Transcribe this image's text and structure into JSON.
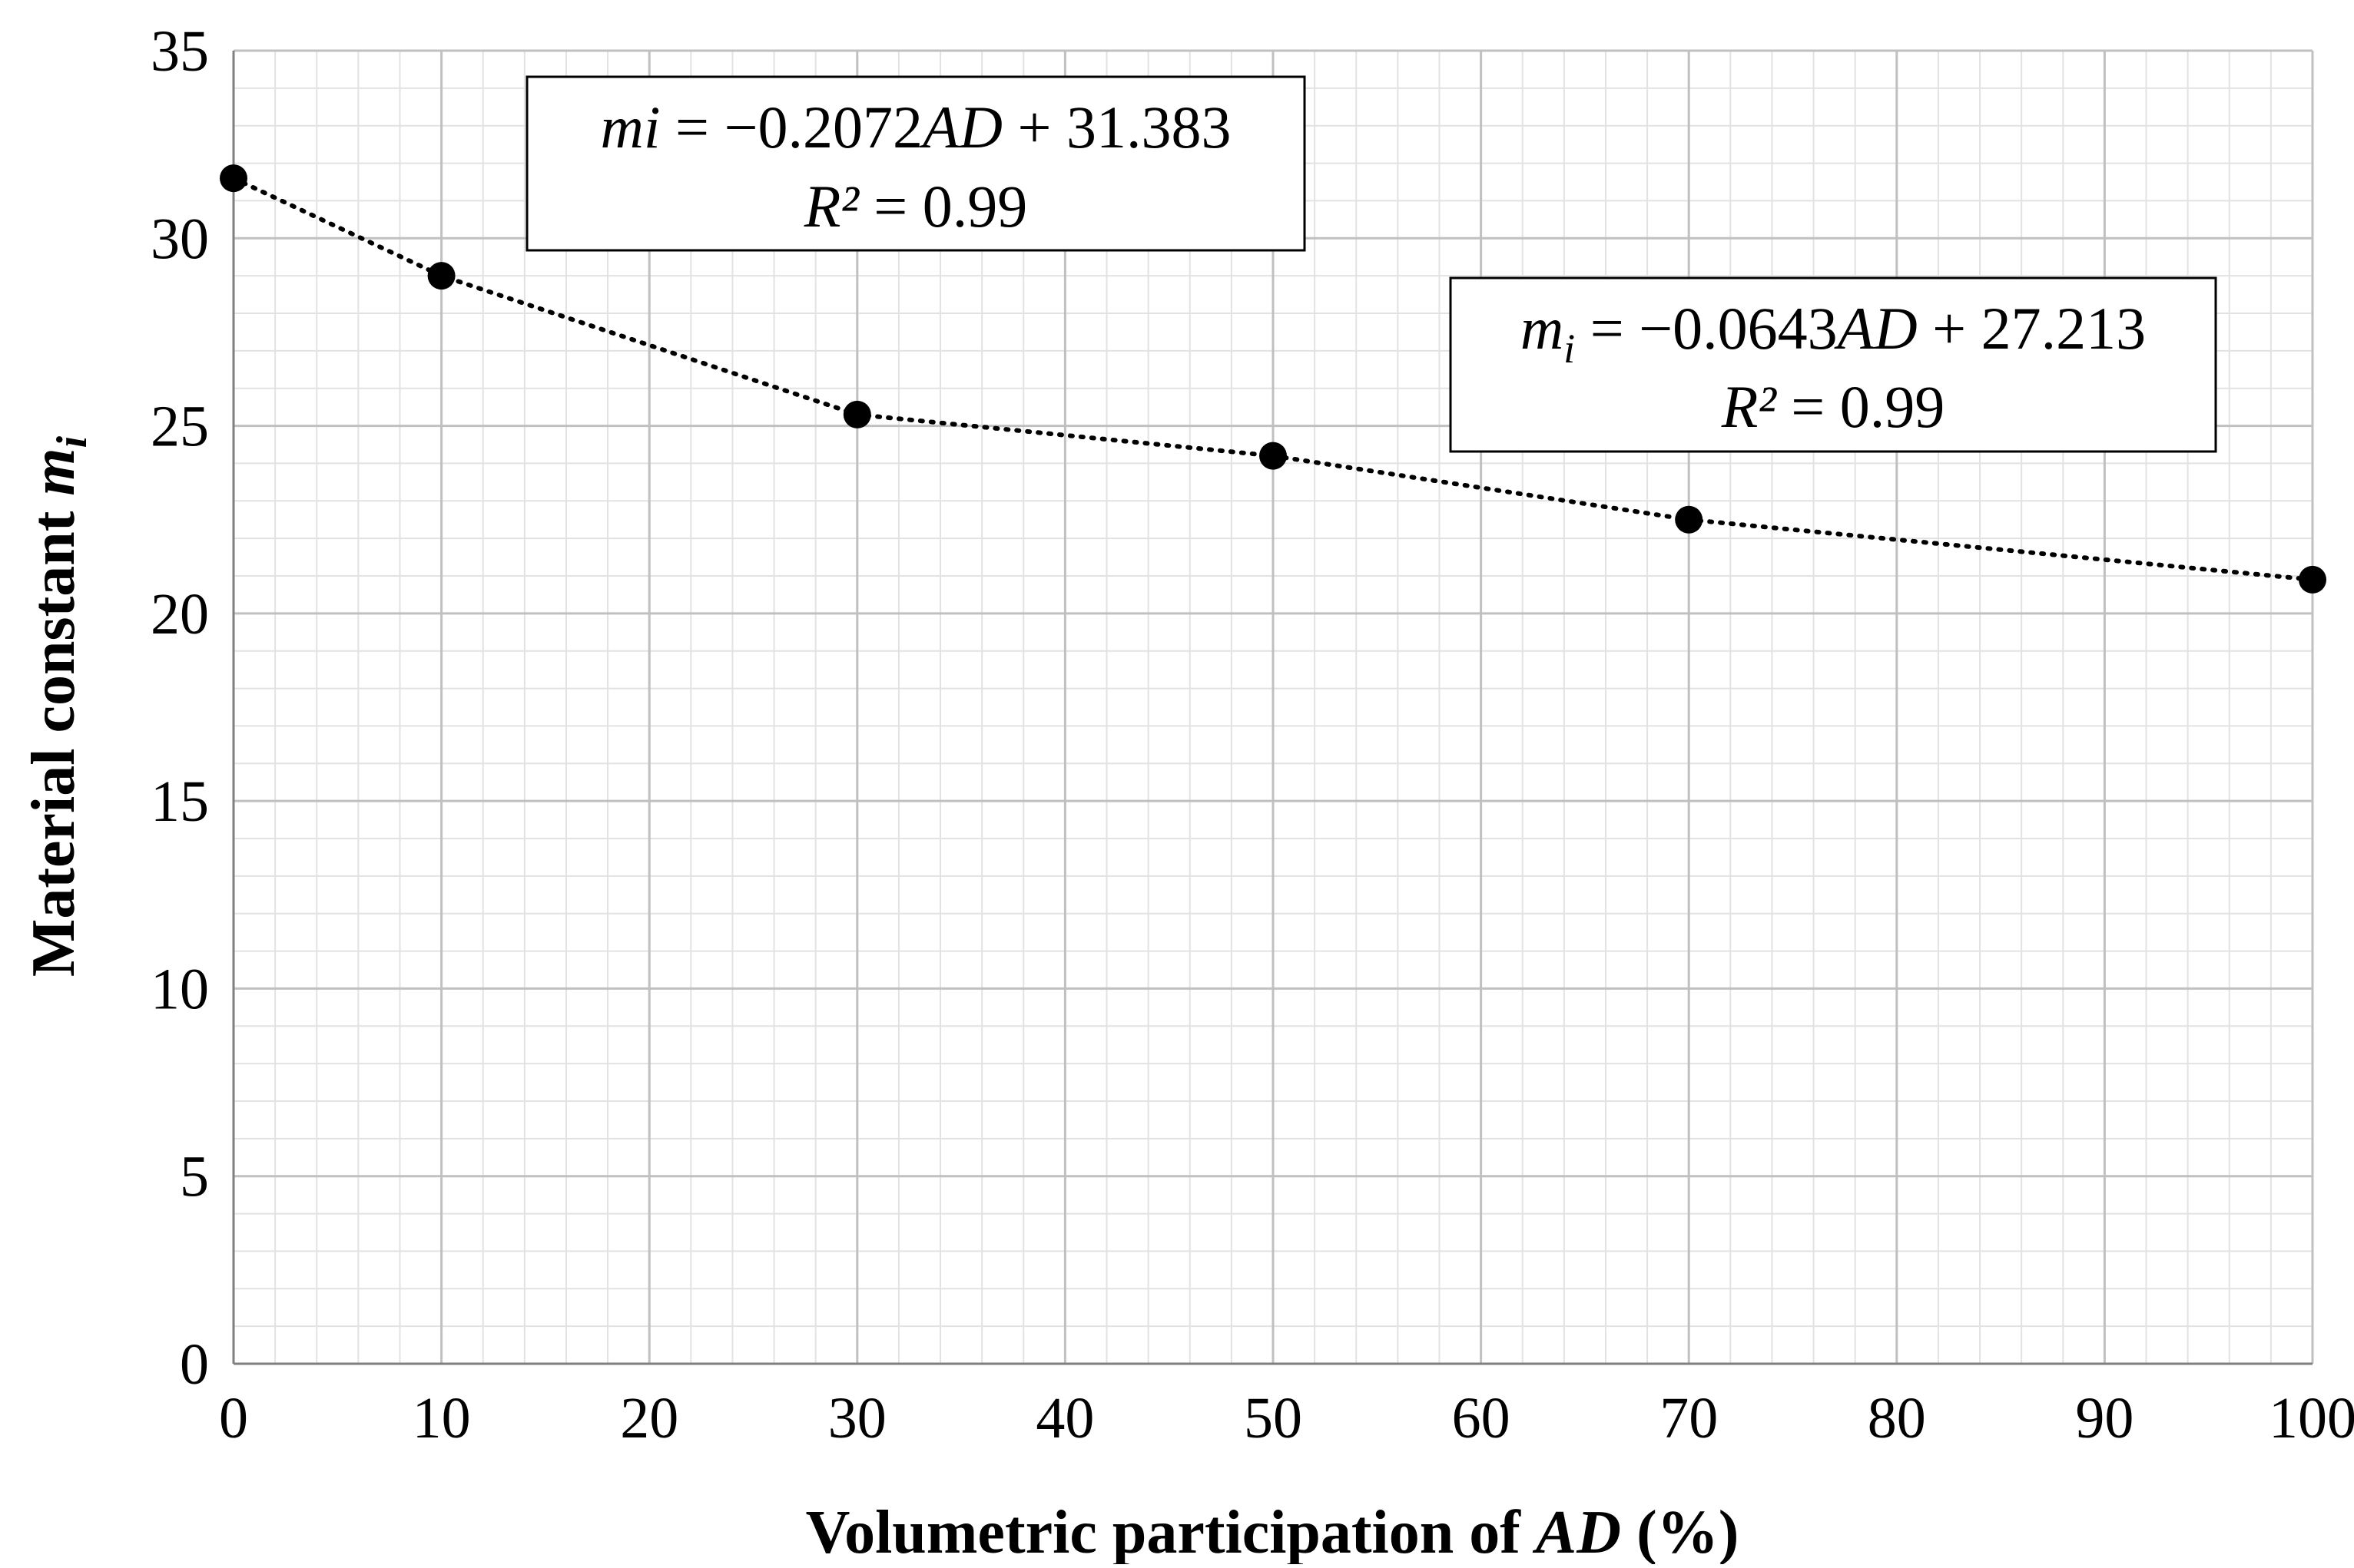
{
  "chart_data": {
    "type": "scatter",
    "xlabel": "Volumetric participation of AD (%)",
    "xlabel_parts": {
      "prefix": "Volumetric participation of ",
      "italic": "AD",
      "suffix": " (%)"
    },
    "ylabel": "Material constant mi",
    "ylabel_parts": {
      "prefix": "Material constant ",
      "italic": "m",
      "subscript": "i"
    },
    "xlim": [
      0,
      100
    ],
    "ylim": [
      0,
      35
    ],
    "xticks": [
      "0",
      "10",
      "20",
      "30",
      "40",
      "50",
      "60",
      "70",
      "80",
      "90",
      "100"
    ],
    "yticks": [
      "0",
      "5",
      "10",
      "15",
      "20",
      "25",
      "30",
      "35"
    ],
    "grid": true,
    "series": [
      {
        "name": "mi",
        "x": [
          0,
          10,
          30,
          50,
          70,
          100
        ],
        "y": [
          31.6,
          29.0,
          25.3,
          24.2,
          22.5,
          20.9
        ],
        "marker": "circle",
        "trendline": "dotted"
      }
    ],
    "annotations": [
      {
        "id": "eq1",
        "line1": "mi = −0.2072AD + 31.383",
        "line1_parts": {
          "a": "mi",
          "b": " = −0.2072",
          "c": "AD",
          "d": " + 31.383"
        },
        "line2": "R² = 0.99",
        "line2_parts": {
          "a": "R²",
          "b": " = 0.99"
        }
      },
      {
        "id": "eq2",
        "line1": "mi = −0.0643AD + 27.213",
        "line1_parts": {
          "a": "m",
          "sub": "i",
          "b": " = −0.0643",
          "c": "AD",
          "d": " + 27.213"
        },
        "line2": "R² = 0.99",
        "line2_parts": {
          "a": "R²",
          "b": " = 0.99"
        }
      }
    ],
    "colors": {
      "marker": "#000000",
      "trend": "#000000",
      "grid_major": "#c0c0c0",
      "grid_minor": "#e2e2e2",
      "axis": "#7f7f7f"
    }
  }
}
